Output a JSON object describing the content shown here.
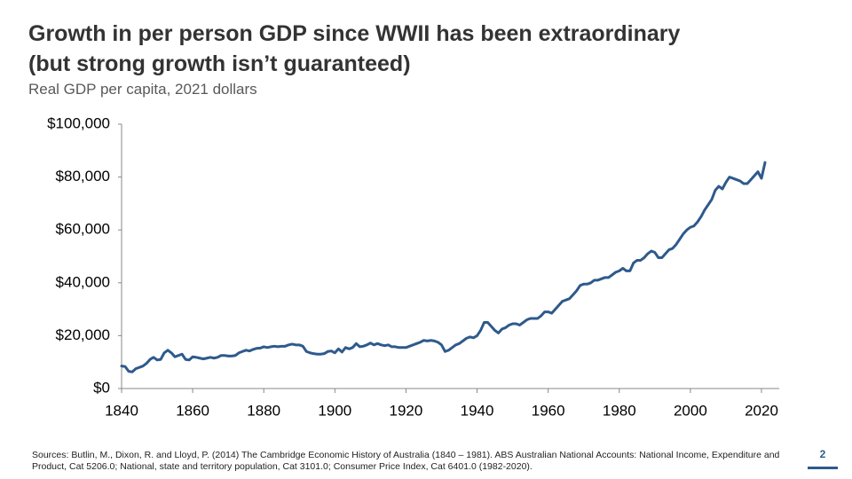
{
  "chart_data": {
    "type": "line",
    "title": [
      "Growth in per person GDP since WWII has been extraordinary",
      "(but strong growth isn’t guaranteed)"
    ],
    "subtitle": "Real GDP per capita, 2021 dollars",
    "color": "#2e5a8c",
    "xlim": [
      1840,
      2025
    ],
    "xticks": [
      1840,
      1860,
      1880,
      1900,
      1920,
      1940,
      1960,
      1980,
      2000,
      2020
    ],
    "ylim": [
      0,
      100000
    ],
    "yticks": [
      {
        "value": 0,
        "label": "$0"
      },
      {
        "value": 20000,
        "label": "$20,000"
      },
      {
        "value": 40000,
        "label": "$40,000"
      },
      {
        "value": 60000,
        "label": "$60,000"
      },
      {
        "value": 80000,
        "label": "$80,000"
      },
      {
        "value": 100000,
        "label": "$100,000"
      }
    ],
    "x": [
      1840,
      1841,
      1842,
      1843,
      1844,
      1845,
      1846,
      1847,
      1848,
      1849,
      1850,
      1851,
      1852,
      1853,
      1854,
      1855,
      1856,
      1857,
      1858,
      1859,
      1860,
      1861,
      1862,
      1863,
      1864,
      1865,
      1866,
      1867,
      1868,
      1869,
      1870,
      1871,
      1872,
      1873,
      1874,
      1875,
      1876,
      1877,
      1878,
      1879,
      1880,
      1881,
      1882,
      1883,
      1884,
      1885,
      1886,
      1887,
      1888,
      1889,
      1890,
      1891,
      1892,
      1893,
      1894,
      1895,
      1896,
      1897,
      1898,
      1899,
      1900,
      1901,
      1902,
      1903,
      1904,
      1905,
      1906,
      1907,
      1908,
      1909,
      1910,
      1911,
      1912,
      1913,
      1914,
      1915,
      1916,
      1917,
      1918,
      1919,
      1920,
      1921,
      1922,
      1923,
      1924,
      1925,
      1926,
      1927,
      1928,
      1929,
      1930,
      1931,
      1932,
      1933,
      1934,
      1935,
      1936,
      1937,
      1938,
      1939,
      1940,
      1941,
      1942,
      1943,
      1944,
      1945,
      1946,
      1947,
      1948,
      1949,
      1950,
      1951,
      1952,
      1953,
      1954,
      1955,
      1956,
      1957,
      1958,
      1959,
      1960,
      1961,
      1962,
      1963,
      1964,
      1965,
      1966,
      1967,
      1968,
      1969,
      1970,
      1971,
      1972,
      1973,
      1974,
      1975,
      1976,
      1977,
      1978,
      1979,
      1980,
      1981,
      1982,
      1983,
      1984,
      1985,
      1986,
      1987,
      1988,
      1989,
      1990,
      1991,
      1992,
      1993,
      1994,
      1995,
      1996,
      1997,
      1998,
      1999,
      2000,
      2001,
      2002,
      2003,
      2004,
      2005,
      2006,
      2007,
      2008,
      2009,
      2010,
      2011,
      2012,
      2013,
      2014,
      2015,
      2016,
      2017,
      2018,
      2019,
      2020,
      2021
    ],
    "values": [
      8500,
      8300,
      6500,
      6300,
      7500,
      8000,
      8500,
      9500,
      11000,
      11800,
      10800,
      11000,
      13500,
      14500,
      13500,
      12000,
      12500,
      13000,
      11000,
      10800,
      12000,
      11800,
      11500,
      11200,
      11500,
      11800,
      11500,
      11800,
      12500,
      12500,
      12300,
      12300,
      12500,
      13500,
      14000,
      14500,
      14200,
      14800,
      15200,
      15300,
      15800,
      15500,
      15800,
      16000,
      15800,
      16000,
      16000,
      16500,
      16800,
      16500,
      16500,
      16000,
      14000,
      13500,
      13200,
      13000,
      13000,
      13200,
      14000,
      14200,
      13500,
      15000,
      13800,
      15500,
      15000,
      15500,
      17000,
      15800,
      16000,
      16500,
      17200,
      16500,
      17000,
      16500,
      16200,
      16500,
      15800,
      15800,
      15500,
      15500,
      15500,
      16000,
      16500,
      17000,
      17500,
      18200,
      18000,
      18200,
      18000,
      17500,
      16500,
      14000,
      14500,
      15500,
      16500,
      17000,
      18000,
      19000,
      19500,
      19200,
      20000,
      22000,
      25000,
      25000,
      23500,
      22000,
      21000,
      22500,
      23000,
      24000,
      24500,
      24500,
      24000,
      25000,
      26000,
      26500,
      26500,
      26500,
      27500,
      29000,
      29000,
      28500,
      30000,
      31500,
      33000,
      33500,
      34000,
      35500,
      37000,
      39000,
      39500,
      39500,
      40000,
      41000,
      41000,
      41500,
      42000,
      42000,
      43000,
      44000,
      44500,
      45500,
      44500,
      44500,
      47500,
      48500,
      48500,
      49500,
      51000,
      52000,
      51500,
      49500,
      49500,
      51000,
      52500,
      53000,
      54500,
      56500,
      58500,
      60000,
      61000,
      61500,
      63000,
      65000,
      67500,
      69500,
      71500,
      75000,
      76500,
      75500,
      78000,
      80000,
      79500,
      79000,
      78500,
      77500,
      77500,
      79000,
      80500,
      82000,
      79500,
      85500
    ]
  },
  "source": "Sources: Butlin, M., Dixon, R. and Lloyd, P. (2014) The Cambridge Economic History of Australia (1840 – 1981). ABS Australian National Accounts: National Income, Expenditure and Product, Cat 5206.0; National, state and territory population, Cat 3101.0; Consumer Price Index, Cat 6401.0 (1982-2020).",
  "page_number": "2"
}
